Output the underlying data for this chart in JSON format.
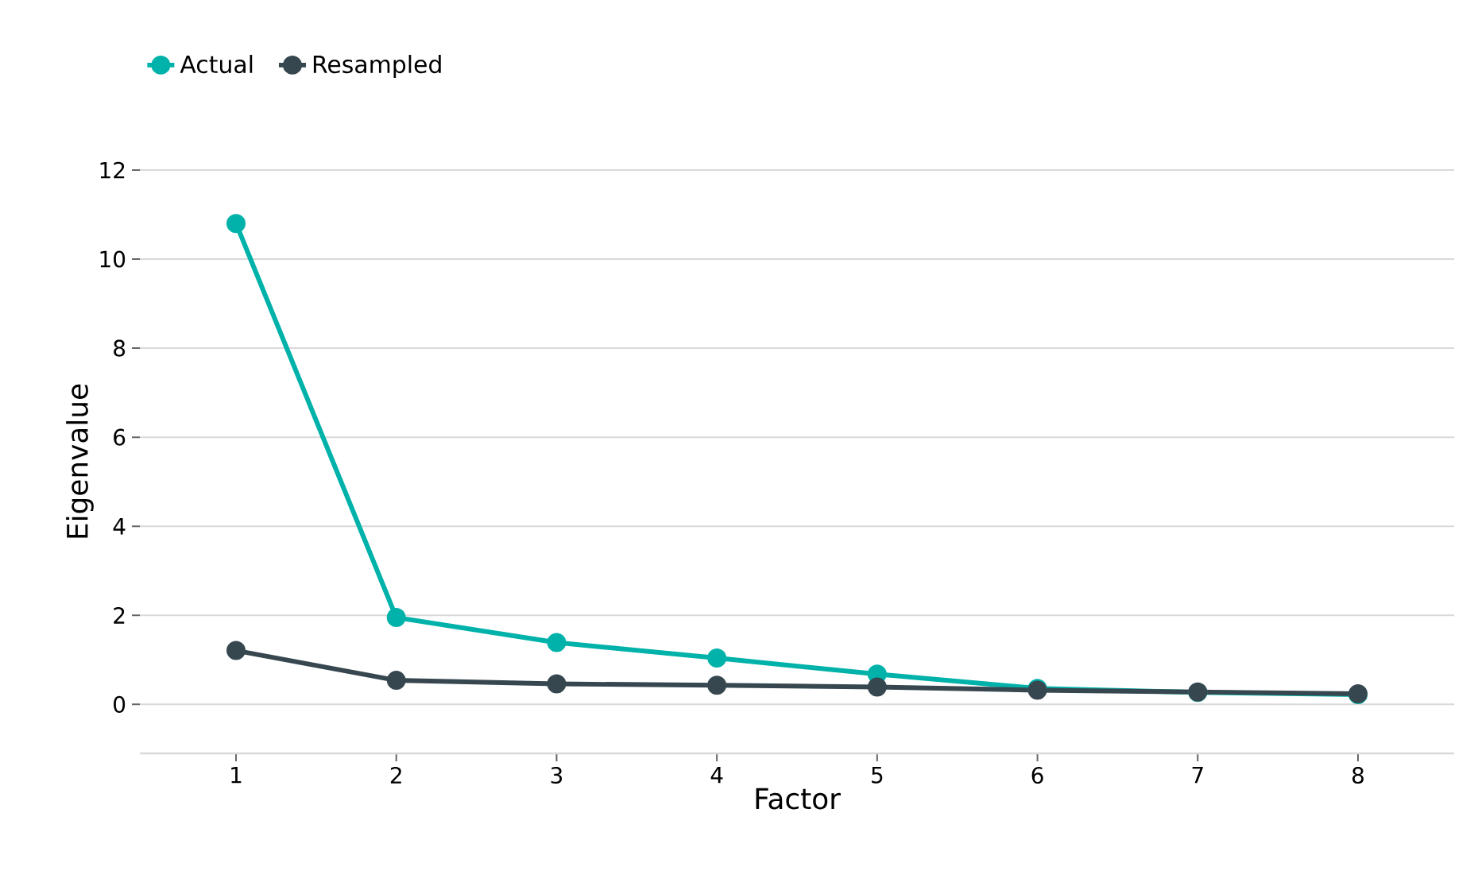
{
  "chart_data": {
    "type": "line",
    "xlabel": "Factor",
    "ylabel": "Eigenvalue",
    "x": [
      1,
      2,
      3,
      4,
      5,
      6,
      7,
      8
    ],
    "series": [
      {
        "name": "Actual",
        "color": "#00b2a9",
        "values": [
          10.8,
          1.95,
          1.39,
          1.04,
          0.68,
          0.36,
          0.27,
          0.22
        ]
      },
      {
        "name": "Resampled",
        "color": "#37474f",
        "values": [
          1.21,
          0.54,
          0.46,
          0.43,
          0.39,
          0.32,
          0.28,
          0.24
        ]
      }
    ],
    "xlim": [
      0.4,
      8.6
    ],
    "ylim": [
      -1.1,
      12
    ],
    "xticks": [
      1,
      2,
      3,
      4,
      5,
      6,
      7,
      8
    ],
    "yticks": [
      0,
      2,
      4,
      6,
      8,
      10,
      12
    ],
    "grid": "y",
    "legend": "top left",
    "marker": "circle",
    "line_style": "solid"
  }
}
